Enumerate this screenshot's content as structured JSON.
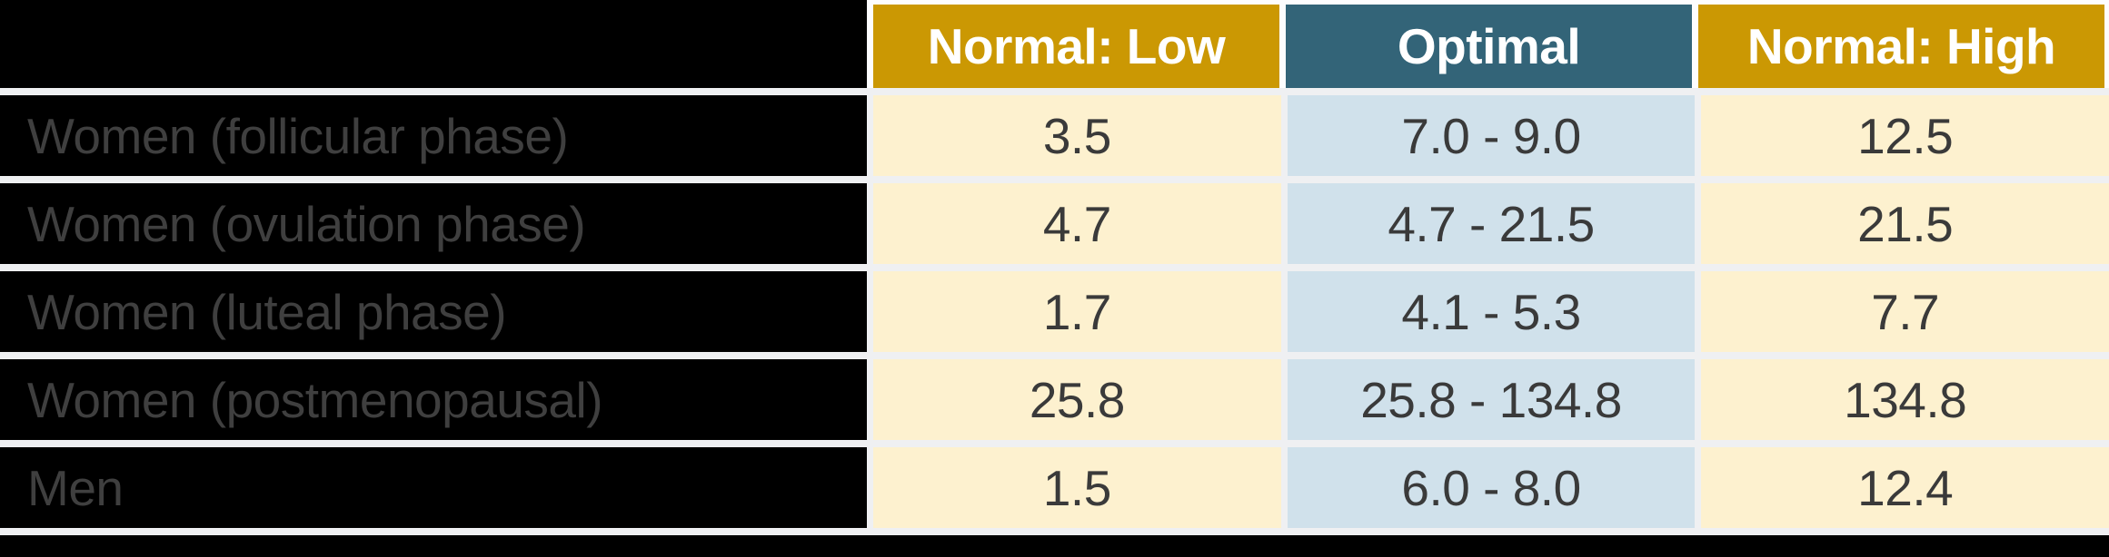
{
  "colors": {
    "gold": "#CB9803",
    "teal": "#336478",
    "cream": "#FDF1CF",
    "lightblue": "#D0E1EB",
    "gap": "#EFF0F2",
    "black": "#000000",
    "headertext": "#FFFFFF",
    "rowlabeltext": "#3F3F3F",
    "valuetext": "#3A3A3A"
  },
  "table": {
    "headers": {
      "label": "",
      "low": "Normal: Low",
      "optimal": "Optimal",
      "high": "Normal: High"
    },
    "rows": [
      {
        "label": "Women (follicular phase)",
        "low": "3.5",
        "optimal": "7.0 - 9.0",
        "high": "12.5"
      },
      {
        "label": "Women (ovulation phase)",
        "low": "4.7",
        "optimal": "4.7 - 21.5",
        "high": "21.5"
      },
      {
        "label": "Women (luteal phase)",
        "low": "1.7",
        "optimal": "4.1 - 5.3",
        "high": "7.7"
      },
      {
        "label": "Women (postmenopausal)",
        "low": "25.8",
        "optimal": "25.8 - 134.8",
        "high": "134.8"
      },
      {
        "label": "Men",
        "low": "1.5",
        "optimal": "6.0 - 8.0",
        "high": "12.4"
      }
    ]
  },
  "chart_data": {
    "type": "table",
    "title": "",
    "columns": [
      "",
      "Normal: Low",
      "Optimal",
      "Normal: High"
    ],
    "rows": [
      [
        "Women (follicular phase)",
        "3.5",
        "7.0 - 9.0",
        "12.5"
      ],
      [
        "Women (ovulation phase)",
        "4.7",
        "4.7 - 21.5",
        "21.5"
      ],
      [
        "Women (luteal phase)",
        "1.7",
        "4.1 - 5.3",
        "7.7"
      ],
      [
        "Women (postmenopausal)",
        "25.8",
        "25.8 - 134.8",
        "134.8"
      ],
      [
        "Men",
        "1.5",
        "6.0 - 8.0",
        "12.4"
      ]
    ],
    "layout_hints": {
      "header_colors": [
        "black",
        "gold",
        "teal",
        "gold"
      ],
      "body_column_colors": [
        "black",
        "cream",
        "lightblue",
        "cream"
      ]
    }
  }
}
